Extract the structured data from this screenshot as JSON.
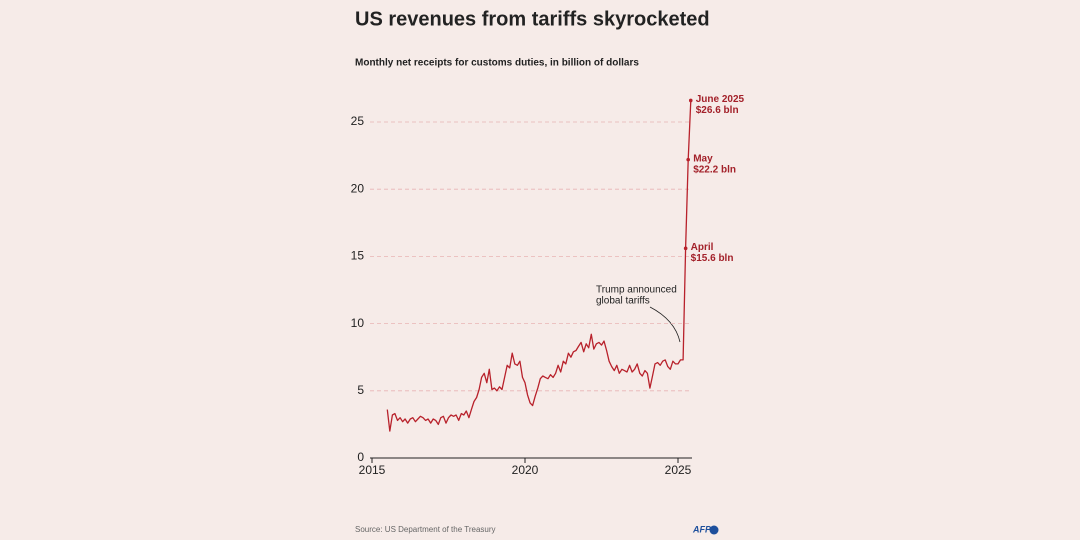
{
  "chart_data": {
    "type": "line",
    "title": "US revenues from tariffs skyrocketed",
    "subtitle": "Monthly net receipts for customs duties, in billion of dollars",
    "source": "Source: US Department of the Treasury",
    "logo": "AFP",
    "note": [
      "Trump announced",
      "global tariffs"
    ],
    "annotations": [
      {
        "month": "April",
        "label": "$15.6 bln"
      },
      {
        "month": "May",
        "label": "$22.2 bln"
      },
      {
        "month": "June 2025",
        "label": "$26.6 bln"
      }
    ],
    "xlim": [
      2015,
      2025.5
    ],
    "xticks": [
      2015,
      2020,
      2025
    ],
    "ylim": [
      0,
      27
    ],
    "yticks": [
      0,
      5,
      10,
      15,
      20,
      25
    ],
    "grid": true,
    "series": [
      {
        "color": "#b8212b",
        "x": [
          2015.5,
          2015.583,
          2015.667,
          2015.75,
          2015.833,
          2015.917,
          2016,
          2016.083,
          2016.167,
          2016.25,
          2016.333,
          2016.417,
          2016.5,
          2016.583,
          2016.667,
          2016.75,
          2016.833,
          2016.917,
          2017,
          2017.083,
          2017.167,
          2017.25,
          2017.333,
          2017.417,
          2017.5,
          2017.583,
          2017.667,
          2017.75,
          2017.833,
          2017.917,
          2018,
          2018.083,
          2018.167,
          2018.25,
          2018.333,
          2018.417,
          2018.5,
          2018.583,
          2018.667,
          2018.75,
          2018.833,
          2018.917,
          2019,
          2019.083,
          2019.167,
          2019.25,
          2019.333,
          2019.417,
          2019.5,
          2019.583,
          2019.667,
          2019.75,
          2019.833,
          2019.917,
          2020,
          2020.083,
          2020.167,
          2020.25,
          2020.333,
          2020.417,
          2020.5,
          2020.583,
          2020.667,
          2020.75,
          2020.833,
          2020.917,
          2021,
          2021.083,
          2021.167,
          2021.25,
          2021.333,
          2021.417,
          2021.5,
          2021.583,
          2021.667,
          2021.75,
          2021.833,
          2021.917,
          2022,
          2022.083,
          2022.167,
          2022.25,
          2022.333,
          2022.417,
          2022.5,
          2022.583,
          2022.667,
          2022.75,
          2022.833,
          2022.917,
          2023,
          2023.083,
          2023.167,
          2023.25,
          2023.333,
          2023.417,
          2023.5,
          2023.583,
          2023.667,
          2023.75,
          2023.833,
          2023.917,
          2024,
          2024.083,
          2024.167,
          2024.25,
          2024.333,
          2024.417,
          2024.5,
          2024.583,
          2024.667,
          2024.75,
          2024.833,
          2024.917,
          2025,
          2025.083,
          2025.167,
          2025.25,
          2025.333,
          2025.417
        ],
        "values": [
          3.6,
          2.0,
          3.2,
          3.3,
          2.8,
          3.0,
          2.7,
          2.9,
          2.6,
          2.9,
          3.0,
          2.7,
          2.9,
          3.1,
          3.0,
          2.8,
          2.9,
          2.6,
          2.9,
          2.8,
          2.5,
          3.0,
          3.1,
          2.6,
          3.0,
          3.2,
          3.1,
          3.2,
          2.8,
          3.3,
          3.2,
          3.5,
          3.0,
          3.6,
          4.2,
          4.5,
          5.1,
          6.0,
          6.3,
          5.6,
          6.6,
          5.1,
          5.2,
          5.0,
          5.3,
          5.1,
          6.0,
          6.9,
          6.7,
          7.8,
          7.0,
          6.9,
          7.2,
          6.0,
          5.6,
          4.7,
          4.1,
          3.9,
          4.6,
          5.2,
          5.9,
          6.1,
          6.0,
          5.9,
          6.2,
          6.0,
          6.3,
          6.9,
          6.4,
          7.2,
          7.0,
          7.8,
          7.5,
          7.9,
          8.0,
          8.3,
          8.6,
          7.9,
          8.5,
          8.2,
          9.2,
          8.1,
          8.5,
          8.6,
          8.4,
          8.7,
          8.0,
          7.2,
          6.8,
          6.5,
          6.9,
          6.3,
          6.6,
          6.5,
          6.4,
          6.9,
          6.4,
          6.6,
          7.0,
          6.3,
          6.1,
          6.5,
          6.3,
          5.2,
          6.1,
          7.0,
          7.1,
          6.9,
          7.2,
          7.3,
          6.8,
          6.6,
          7.2,
          7.0,
          7.0,
          7.3,
          7.3,
          15.6,
          22.2,
          26.6
        ]
      }
    ]
  }
}
